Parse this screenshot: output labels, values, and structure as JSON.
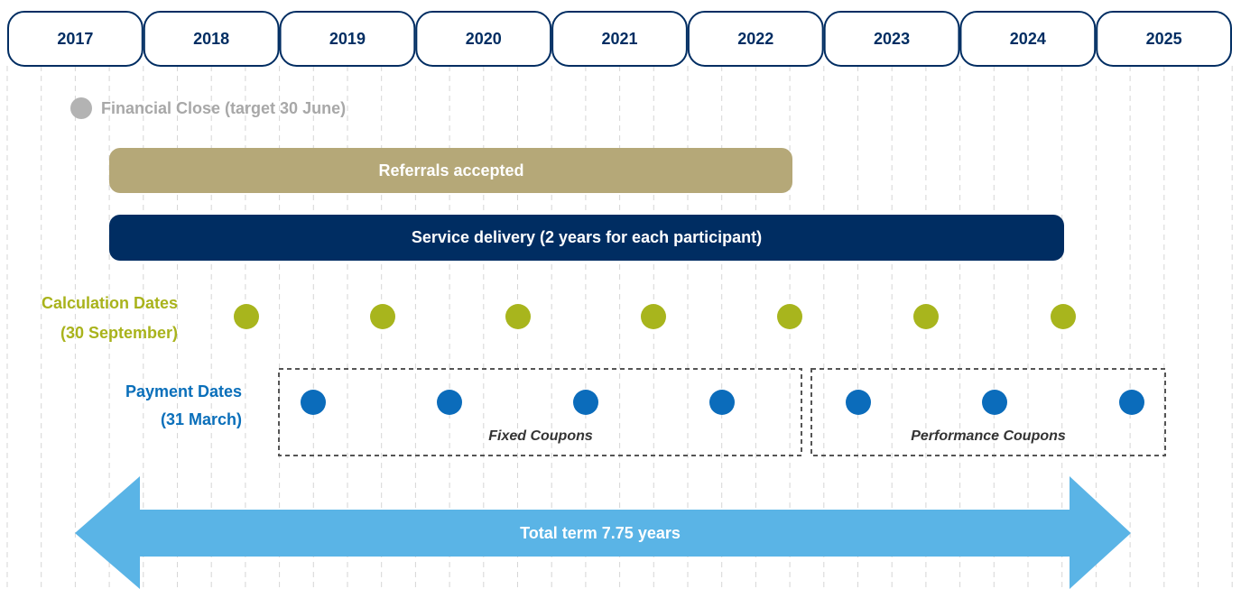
{
  "timeline": {
    "years": [
      "2017",
      "2018",
      "2019",
      "2020",
      "2021",
      "2022",
      "2023",
      "2024",
      "2025"
    ],
    "financial_close": "Financial Close (target 30 June)",
    "referrals": "Referrals accepted",
    "service_delivery": "Service delivery (2 years for each participant)",
    "calculation_dates": {
      "line1": "Calculation Dates",
      "line2": "(30 September)"
    },
    "payment_dates": {
      "line1": "Payment Dates",
      "line2": "(31 March)"
    },
    "fixed_coupons": "Fixed Coupons",
    "performance_coupons": "Performance Coupons",
    "total_term": "Total term 7.75 years"
  }
}
